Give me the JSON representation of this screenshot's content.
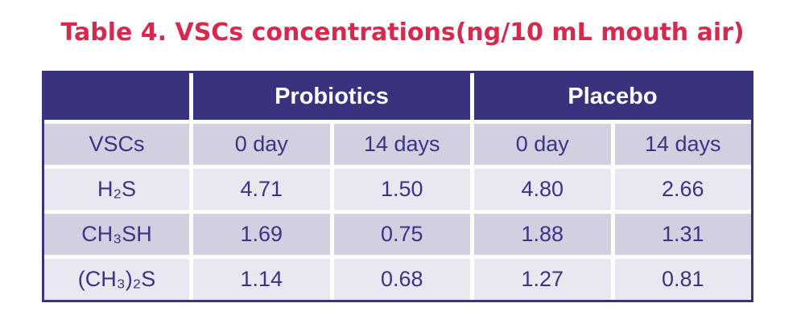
{
  "title": "Table 4. VSCs concentrations(ng/10 mL mouth air)",
  "colors": {
    "title": "#d7294e",
    "header_bg": "#38327f",
    "header_text": "#ffffff",
    "cell_text": "#3b3486",
    "row_medium": "#d2cfe0",
    "row_light": "#e9e7ef",
    "border": "#38327f",
    "background": "#ffffff"
  },
  "chart_data": {
    "type": "table",
    "title": "Table 4. VSCs concentrations(ng/10 mL mouth air)",
    "column_groups": [
      "Probiotics",
      "Placebo"
    ],
    "sub_headers": [
      "VSCs",
      "0 day",
      "14 days",
      "0 day",
      "14 days"
    ],
    "rows": [
      {
        "label": "H₂S",
        "values": [
          "4.71",
          "1.50",
          "4.80",
          "2.66"
        ]
      },
      {
        "label": "CH₃SH",
        "values": [
          "1.69",
          "0.75",
          "1.88",
          "1.31"
        ]
      },
      {
        "label": "(CH₃)₂S",
        "values": [
          "1.14",
          "0.68",
          "1.27",
          "0.81"
        ]
      }
    ]
  }
}
